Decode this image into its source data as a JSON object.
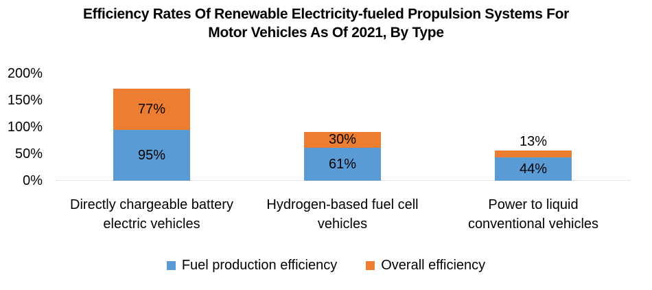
{
  "title": {
    "line1": "Efficiency Rates Of Renewable Electricity-fueled Propulsion Systems For",
    "line2": "Motor Vehicles As Of 2021, By Type"
  },
  "legend": {
    "items": [
      {
        "label": "Fuel production efficiency",
        "color": "#5B9BD5"
      },
      {
        "label": "Overall efficiency",
        "color": "#ED7D31"
      }
    ]
  },
  "colors": {
    "blue": "#5B9BD5",
    "orange": "#ED7D31",
    "baseline": "#C9C9C9",
    "text": "#000000"
  },
  "chart_data": {
    "type": "bar",
    "stacked": true,
    "title": "Efficiency Rates Of Renewable Electricity-fueled Propulsion Systems For Motor Vehicles As Of 2021, By Type",
    "categories": [
      [
        "Directly chargeable battery",
        "electric vehicles"
      ],
      [
        "Hydrogen-based fuel cell",
        "vehicles"
      ],
      [
        "Power to liquid",
        "conventional vehicles"
      ]
    ],
    "series": [
      {
        "name": "Fuel production efficiency",
        "color": "#5B9BD5",
        "values": [
          95,
          61,
          44
        ]
      },
      {
        "name": "Overall efficiency",
        "color": "#ED7D31",
        "values": [
          77,
          30,
          13
        ]
      }
    ],
    "data_labels": [
      [
        "95%",
        "61%",
        "44%"
      ],
      [
        "77%",
        "30%",
        "13%"
      ]
    ],
    "data_label_format": "{value}%",
    "yticks": [
      {
        "label": "0%",
        "value": 0
      },
      {
        "label": "50%",
        "value": 50
      },
      {
        "label": "100%",
        "value": 100
      },
      {
        "label": "150%",
        "value": 150
      },
      {
        "label": "200%",
        "value": 200
      }
    ],
    "ylim": [
      0,
      200
    ],
    "grid": false,
    "legend_position": "bottom"
  }
}
